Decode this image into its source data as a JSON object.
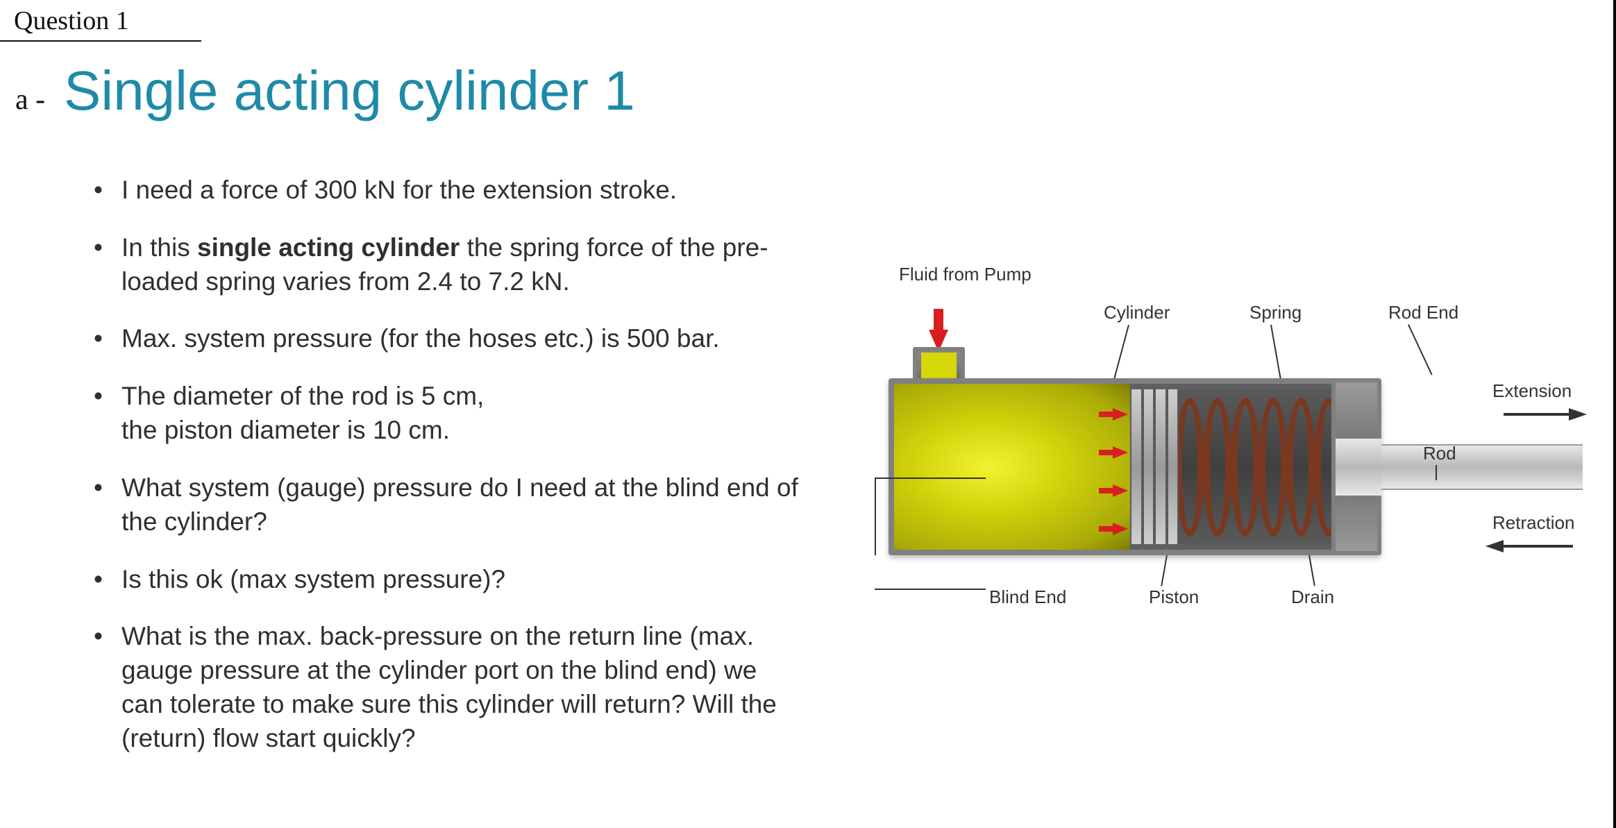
{
  "handwritten": {
    "question": "Question 1",
    "part": "a -"
  },
  "title": "Single acting cylinder 1",
  "bullets": [
    {
      "html": "I need a force of 300 kN for the extension stroke."
    },
    {
      "html": "In this <b>single acting cylinder</b> the spring force of the pre-loaded spring varies from 2.4 to 7.2 kN."
    },
    {
      "html": "Max. system pressure (for the hoses etc.) is 500 bar."
    },
    {
      "html": "The diameter of the rod is 5 cm,<br>the piston diameter is 10 cm."
    },
    {
      "html": "What system (gauge) pressure do I need at the blind end of the cylinder?"
    },
    {
      "html": "Is this ok (max system pressure)?"
    },
    {
      "html": "What is the max. back-pressure on the return line (max. gauge pressure at the cylinder port on the blind end) we can tolerate to make sure this cylinder will return? Will the (return) flow start quickly?"
    }
  ],
  "diagram": {
    "labels": {
      "fluid": "Fluid from Pump",
      "cylinder": "Cylinder",
      "spring": "Spring",
      "rodEnd": "Rod End",
      "extension": "Extension",
      "rod": "Rod",
      "retraction": "Retraction",
      "blindEnd": "Blind End",
      "piston": "Piston",
      "drain": "Drain"
    },
    "colors": {
      "fluid": "#d6d80a",
      "arrow": "#d81e1e",
      "metal": "#808080",
      "springCoil": "#7a3820",
      "titleColor": "#1f8aa8",
      "text": "#2f2f2f"
    },
    "styling": {
      "title_fontsize_pt": 60,
      "body_fontsize_pt": 28,
      "label_fontsize_pt": 20,
      "n_coils": 7,
      "n_piston_plates": 4,
      "n_inner_arrows": 4
    }
  }
}
